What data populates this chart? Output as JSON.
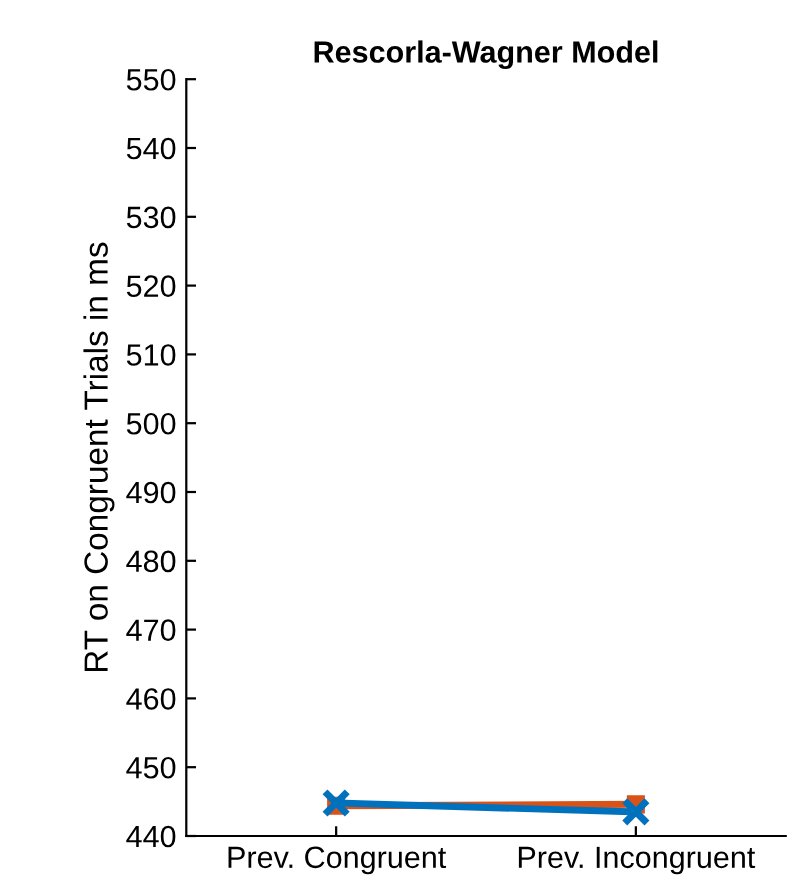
{
  "chart_data": {
    "type": "line",
    "title": "Rescorla-Wagner Model",
    "ylabel": "RT on Congruent Trials in ms",
    "categories": [
      "Prev. Congruent",
      "Prev. Incongruent"
    ],
    "series": [
      {
        "color": "#0072bd",
        "values": [
          444.8,
          443.5
        ],
        "marker": "cross"
      },
      {
        "color": "#d95319",
        "values": [
          444.4,
          444.6
        ],
        "marker": "square"
      }
    ],
    "ylim": [
      440,
      550
    ],
    "yticks": [
      440,
      450,
      460,
      470,
      480,
      490,
      500,
      510,
      520,
      530,
      540,
      550
    ],
    "grid": false,
    "legend": false
  }
}
